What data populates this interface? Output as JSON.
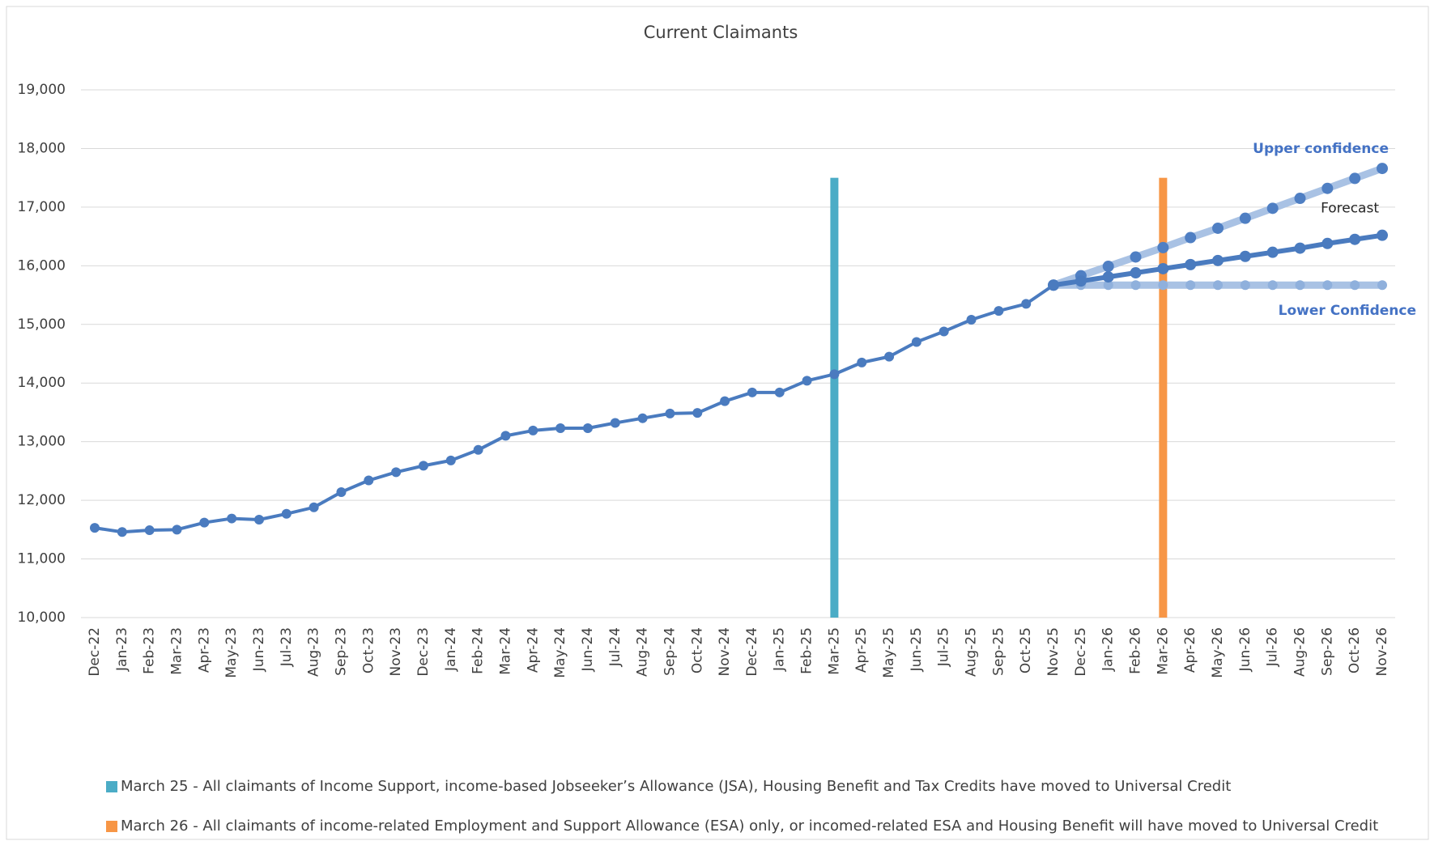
{
  "chart_data": {
    "type": "line",
    "title": "Current Claimants",
    "categories": [
      "Dec-22",
      "Jan-23",
      "Feb-23",
      "Mar-23",
      "Apr-23",
      "May-23",
      "Jun-23",
      "Jul-23",
      "Aug-23",
      "Sep-23",
      "Oct-23",
      "Nov-23",
      "Dec-23",
      "Jan-24",
      "Feb-24",
      "Mar-24",
      "Apr-24",
      "May-24",
      "Jun-24",
      "Jul-24",
      "Aug-24",
      "Sep-24",
      "Oct-24",
      "Nov-24",
      "Dec-24",
      "Jan-25",
      "Feb-25",
      "Mar-25",
      "Apr-25",
      "May-25",
      "Jun-25",
      "Jul-25",
      "Aug-25",
      "Sep-25",
      "Oct-25",
      "Nov-25",
      "Dec-25",
      "Jan-26",
      "Feb-26",
      "Mar-26",
      "Apr-26",
      "May-26",
      "Jun-26",
      "Jul-26",
      "Aug-26",
      "Sep-26",
      "Oct-26",
      "Nov-26"
    ],
    "series": [
      {
        "color": "#4a7bbf",
        "marker_color": "#4a7bbf",
        "values": [
          11530,
          11460,
          11490,
          11500,
          11620,
          11690,
          11670,
          11770,
          11880,
          12140,
          12340,
          12480,
          12590,
          12680,
          12860,
          13100,
          13190,
          13230,
          13230,
          13320,
          13400,
          13480,
          13490,
          13690,
          13840,
          13840,
          14040,
          14150,
          14350,
          14450,
          14700,
          14880,
          15080,
          15230,
          15350,
          15670,
          null,
          null,
          null,
          null,
          null,
          null,
          null,
          null,
          null,
          null,
          null,
          null
        ]
      },
      {
        "name": "Upper confidence",
        "color": "#a9c2e4",
        "marker_color": "#4f7fc3",
        "values": [
          null,
          null,
          null,
          null,
          null,
          null,
          null,
          null,
          null,
          null,
          null,
          null,
          null,
          null,
          null,
          null,
          null,
          null,
          null,
          null,
          null,
          null,
          null,
          null,
          null,
          null,
          null,
          null,
          null,
          null,
          null,
          null,
          null,
          null,
          null,
          15670,
          15830,
          15990,
          16150,
          16310,
          16480,
          16640,
          16810,
          16980,
          17150,
          17320,
          17490,
          17660
        ]
      },
      {
        "name": "Lower Confidence",
        "color": "#a9c2e4",
        "marker_color": "#8fb0dc",
        "values": [
          null,
          null,
          null,
          null,
          null,
          null,
          null,
          null,
          null,
          null,
          null,
          null,
          null,
          null,
          null,
          null,
          null,
          null,
          null,
          null,
          null,
          null,
          null,
          null,
          null,
          null,
          null,
          null,
          null,
          null,
          null,
          null,
          null,
          null,
          null,
          15670,
          15670,
          15670,
          15670,
          15670,
          15670,
          15670,
          15670,
          15670,
          15670,
          15670,
          15670,
          15670
        ]
      },
      {
        "name": "Forecast",
        "color": "#4a7bbf",
        "marker_color": "#4a7bbf",
        "values": [
          null,
          null,
          null,
          null,
          null,
          null,
          null,
          null,
          null,
          null,
          null,
          null,
          null,
          null,
          null,
          null,
          null,
          null,
          null,
          null,
          null,
          null,
          null,
          null,
          null,
          null,
          null,
          null,
          null,
          null,
          null,
          null,
          null,
          null,
          null,
          15670,
          15740,
          15810,
          15880,
          15950,
          16020,
          16090,
          16160,
          16230,
          16300,
          16380,
          16450,
          16520
        ]
      }
    ],
    "markers": [
      {
        "category": "Mar-25",
        "top": 17500,
        "color": "#4bacc6",
        "label": "March 25 - All claimants of Income Support, income-based Jobseeker’s Allowance (JSA), Housing Benefit and Tax Credits have moved  to Universal Credit"
      },
      {
        "category": "Mar-26",
        "top": 17500,
        "color": "#f79646",
        "label": "March 26 - All claimants of income-related Employment and Support Allowance (ESA) only, or incomed-related ESA and Housing Benefit will have moved to Universal Credit"
      }
    ],
    "ylim": [
      10000,
      19000
    ],
    "yticks": [
      {
        "value": 10000,
        "label": "10,000"
      },
      {
        "value": 11000,
        "label": "11,000"
      },
      {
        "value": 12000,
        "label": "12,000"
      },
      {
        "value": 13000,
        "label": "13,000"
      },
      {
        "value": 14000,
        "label": "14,000"
      },
      {
        "value": 15000,
        "label": "15,000"
      },
      {
        "value": 16000,
        "label": "16,000"
      },
      {
        "value": 17000,
        "label": "17,000"
      },
      {
        "value": 18000,
        "label": "18,000"
      },
      {
        "value": 19000,
        "label": "19,000"
      }
    ],
    "grid": true
  }
}
